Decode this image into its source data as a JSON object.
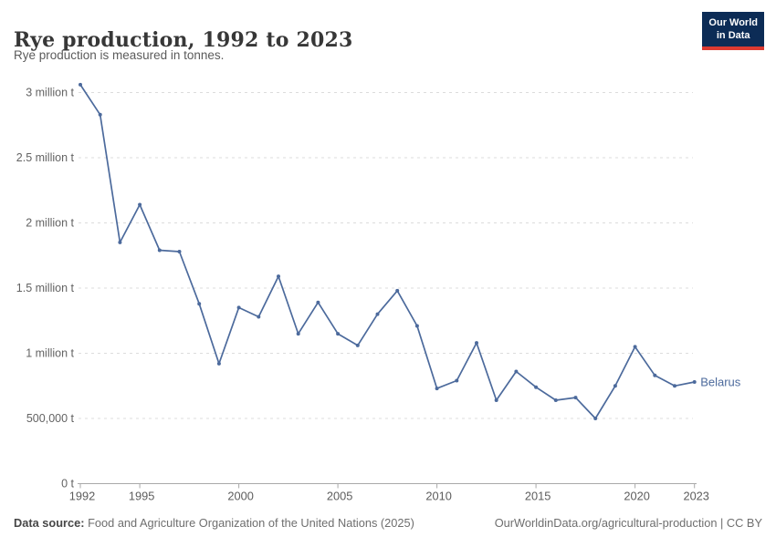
{
  "header": {
    "title": "Rye production, 1992 to 2023",
    "subtitle": "Rye production is measured in tonnes."
  },
  "logo": {
    "line1": "Our World",
    "line2": "in Data",
    "bg_color": "#0c2c56",
    "accent_color": "#dc3a31"
  },
  "chart_data": {
    "type": "line",
    "title": "Rye production, 1992 to 2023",
    "ylabel": "",
    "xlabel": "",
    "unit": "tonnes",
    "xlim": [
      1992,
      2023
    ],
    "ylim": [
      0,
      3100000
    ],
    "grid": "dashed-horizontal",
    "legend_position": "end-of-line-label",
    "x": [
      1992,
      1993,
      1994,
      1995,
      1996,
      1997,
      1998,
      1999,
      2000,
      2001,
      2002,
      2003,
      2004,
      2005,
      2006,
      2007,
      2008,
      2009,
      2010,
      2011,
      2012,
      2013,
      2014,
      2015,
      2016,
      2017,
      2018,
      2019,
      2020,
      2021,
      2022,
      2023
    ],
    "series": [
      {
        "name": "Belarus",
        "color": "#4c6a9c",
        "values": [
          3060000,
          2830000,
          1850000,
          2140000,
          1790000,
          1780000,
          1380000,
          920000,
          1350000,
          1280000,
          1590000,
          1150000,
          1390000,
          1150000,
          1060000,
          1300000,
          1480000,
          1210000,
          730000,
          790000,
          1080000,
          640000,
          860000,
          740000,
          640000,
          660000,
          500000,
          750000,
          1050000,
          830000,
          750000,
          780000
        ]
      }
    ],
    "x_ticks": [
      "1992",
      "1995",
      "2000",
      "2005",
      "2010",
      "2015",
      "2020",
      "2023"
    ],
    "y_ticks": [
      {
        "value": 0,
        "label": "0 t"
      },
      {
        "value": 500000,
        "label": "500,000 t"
      },
      {
        "value": 1000000,
        "label": "1 million t"
      },
      {
        "value": 1500000,
        "label": "1.5 million t"
      },
      {
        "value": 2000000,
        "label": "2 million t"
      },
      {
        "value": 2500000,
        "label": "2.5 million t"
      },
      {
        "value": 3000000,
        "label": "3 million t"
      }
    ]
  },
  "colors": {
    "line": "#4c6a9c",
    "gridline": "#dcdcdc",
    "axis": "#a9a9a9",
    "tick_text": "#5c5c5c"
  },
  "footer": {
    "source_label": "Data source:",
    "source_text": "Food and Agriculture Organization of the United Nations (2025)",
    "credit": "OurWorldinData.org/agricultural-production | CC BY"
  }
}
